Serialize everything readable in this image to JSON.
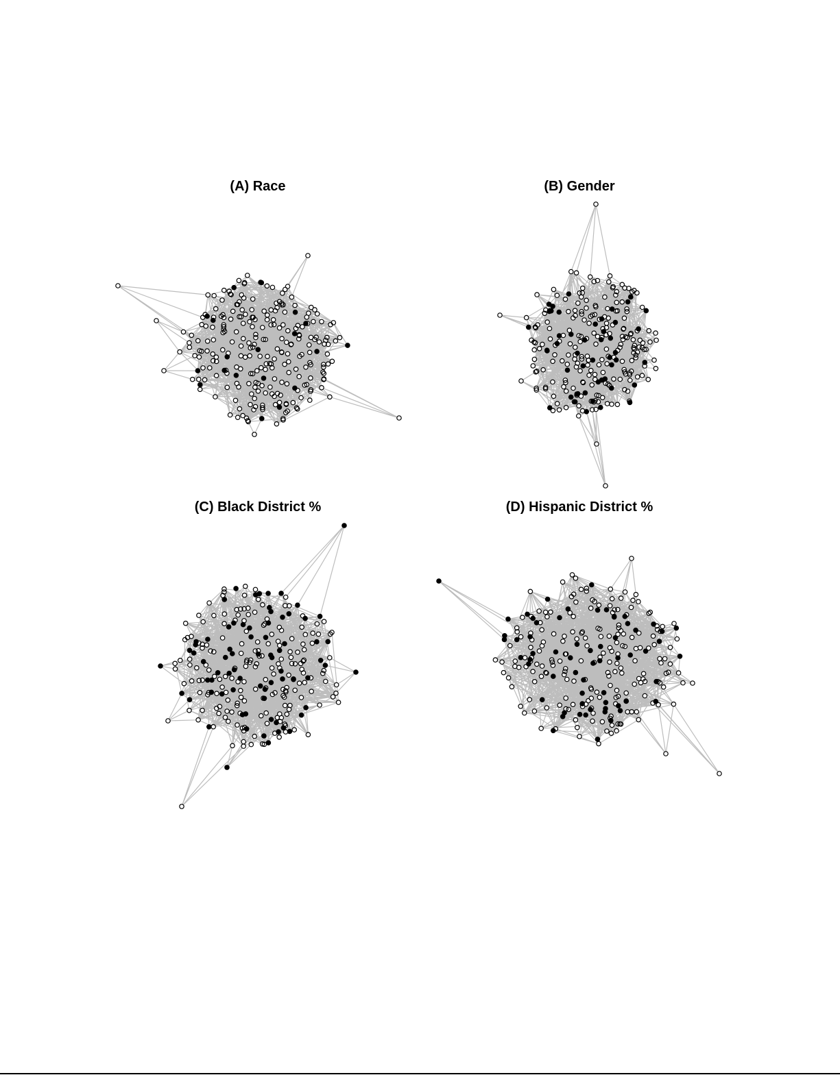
{
  "panels": [
    {
      "title": "(A) Race"
    },
    {
      "title": "(B) Gender"
    },
    {
      "title": "(C) Black District %"
    },
    {
      "title": "(D) Hispanic District %"
    }
  ]
}
